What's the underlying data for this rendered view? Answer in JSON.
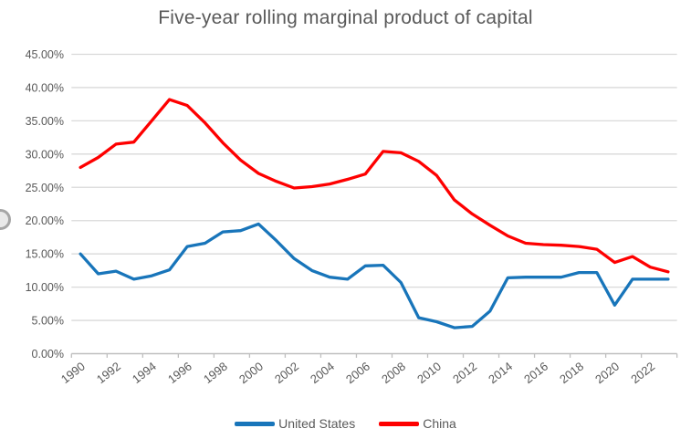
{
  "chart_data": {
    "type": "line",
    "title": "Five-year rolling marginal product of capital",
    "x": [
      1990,
      1991,
      1992,
      1993,
      1994,
      1995,
      1996,
      1997,
      1998,
      1999,
      2000,
      2001,
      2002,
      2003,
      2004,
      2005,
      2006,
      2007,
      2008,
      2009,
      2010,
      2011,
      2012,
      2013,
      2014,
      2015,
      2016,
      2017,
      2018,
      2019,
      2020,
      2021,
      2022,
      2023
    ],
    "series": [
      {
        "name": "United States",
        "color": "#1875BA",
        "values": [
          15.0,
          12.0,
          12.4,
          11.2,
          11.7,
          12.6,
          16.1,
          16.6,
          18.3,
          18.5,
          19.5,
          17.0,
          14.3,
          12.5,
          11.5,
          11.2,
          13.2,
          13.3,
          10.7,
          5.4,
          4.8,
          3.9,
          4.1,
          6.4,
          11.4,
          11.5,
          11.5,
          11.5,
          12.2,
          12.2,
          7.3,
          11.2,
          11.2,
          11.2
        ]
      },
      {
        "name": "China",
        "color": "#FE0000",
        "values": [
          28.0,
          29.5,
          31.5,
          31.8,
          35.0,
          38.2,
          37.3,
          34.7,
          31.7,
          29.1,
          27.1,
          25.9,
          24.9,
          25.1,
          25.5,
          26.2,
          27.0,
          30.4,
          30.2,
          28.9,
          26.8,
          23.1,
          21.0,
          19.3,
          17.7,
          16.6,
          16.4,
          16.3,
          16.1,
          15.7,
          13.7,
          14.6,
          13.0,
          12.3
        ]
      }
    ],
    "ylim": [
      0,
      45
    ],
    "ytick_step": 5,
    "ytick_labels": [
      "0.00%",
      "5.00%",
      "10.00%",
      "15.00%",
      "20.00%",
      "25.00%",
      "30.00%",
      "35.00%",
      "40.00%",
      "45.00%"
    ],
    "xtick_labels": [
      "1990",
      "1992",
      "1994",
      "1996",
      "1998",
      "2000",
      "2002",
      "2004",
      "2006",
      "2008",
      "2010",
      "2012",
      "2014",
      "2016",
      "2018",
      "2020",
      "2022"
    ],
    "grid": true,
    "legend_position": "bottom",
    "colors": {
      "gridline": "#D9D9D9",
      "axis_line": "#BFBFBF",
      "tick": "#BFBFBF",
      "axis_label": "#595959",
      "title": "#595959",
      "legend_text": "#595959"
    }
  }
}
